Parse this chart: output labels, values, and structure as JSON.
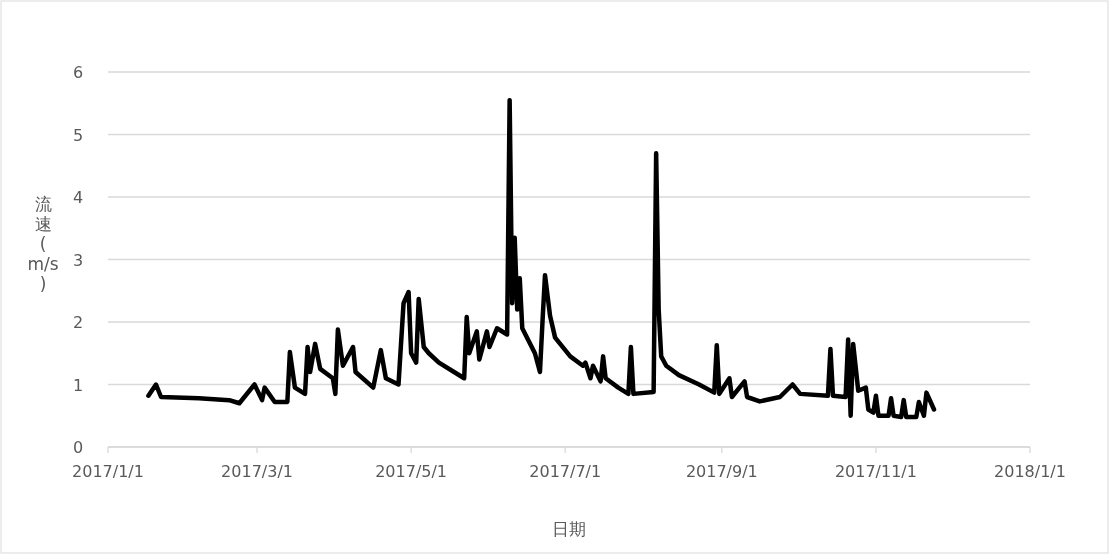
{
  "chart_data": {
    "type": "line",
    "xlabel": "日期",
    "ylabel": "流速(m/s)",
    "xlim": [
      "2017-01-01",
      "2018-01-01"
    ],
    "xticks": [
      {
        "value": "2017-01-01",
        "label": "2017/1/1"
      },
      {
        "value": "2017-03-01",
        "label": "2017/3/1"
      },
      {
        "value": "2017-05-01",
        "label": "2017/5/1"
      },
      {
        "value": "2017-07-01",
        "label": "2017/7/1"
      },
      {
        "value": "2017-09-01",
        "label": "2017/9/1"
      },
      {
        "value": "2017-11-01",
        "label": "2017/11/1"
      },
      {
        "value": "2018-01-01",
        "label": "2018/1/1"
      }
    ],
    "ylim": [
      0,
      6
    ],
    "yticks": [
      0,
      1,
      2,
      3,
      4,
      5,
      6
    ],
    "grid": "y",
    "marker": "none",
    "line_style": "solid",
    "x": [
      "2017-01-17",
      "2017-01-20",
      "2017-01-22",
      "2017-02-06",
      "2017-02-18",
      "2017-02-22",
      "2017-02-28",
      "2017-03-03",
      "2017-03-04",
      "2017-03-08",
      "2017-03-13",
      "2017-03-14",
      "2017-03-16",
      "2017-03-20",
      "2017-03-21",
      "2017-03-22",
      "2017-03-24",
      "2017-03-26",
      "2017-03-31",
      "2017-04-01",
      "2017-04-02",
      "2017-04-04",
      "2017-04-08",
      "2017-04-09",
      "2017-04-16",
      "2017-04-19",
      "2017-04-21",
      "2017-04-26",
      "2017-04-28",
      "2017-04-30",
      "2017-05-01",
      "2017-05-03",
      "2017-05-04",
      "2017-05-06",
      "2017-05-08",
      "2017-05-12",
      "2017-05-18",
      "2017-05-22",
      "2017-05-23",
      "2017-05-24",
      "2017-05-27",
      "2017-05-28",
      "2017-05-31",
      "2017-06-01",
      "2017-06-04",
      "2017-06-08",
      "2017-06-09",
      "2017-06-10",
      "2017-06-11",
      "2017-06-12",
      "2017-06-13",
      "2017-06-14",
      "2017-06-19",
      "2017-06-21",
      "2017-06-22",
      "2017-06-23",
      "2017-06-25",
      "2017-06-27",
      "2017-07-03",
      "2017-07-08",
      "2017-07-09",
      "2017-07-11",
      "2017-07-12",
      "2017-07-15",
      "2017-07-16",
      "2017-07-17",
      "2017-07-22",
      "2017-07-26",
      "2017-07-27",
      "2017-07-28",
      "2017-08-05",
      "2017-08-06",
      "2017-08-07",
      "2017-08-08",
      "2017-08-10",
      "2017-08-15",
      "2017-08-23",
      "2017-08-29",
      "2017-08-30",
      "2017-08-31",
      "2017-09-04",
      "2017-09-05",
      "2017-09-10",
      "2017-09-11",
      "2017-09-16",
      "2017-09-24",
      "2017-09-29",
      "2017-10-02",
      "2017-10-13",
      "2017-10-14",
      "2017-10-15",
      "2017-10-20",
      "2017-10-21",
      "2017-10-22",
      "2017-10-23",
      "2017-10-25",
      "2017-10-28",
      "2017-10-29",
      "2017-10-31",
      "2017-11-01",
      "2017-11-02",
      "2017-11-06",
      "2017-11-07",
      "2017-11-08",
      "2017-11-11",
      "2017-11-12",
      "2017-11-13",
      "2017-11-17",
      "2017-11-18",
      "2017-11-20",
      "2017-11-21",
      "2017-11-24"
    ],
    "series": [
      {
        "color": "#000000",
        "values": [
          0.82,
          1.0,
          0.8,
          0.78,
          0.75,
          0.7,
          1.0,
          0.75,
          0.95,
          0.72,
          0.72,
          1.52,
          0.95,
          0.85,
          1.6,
          1.2,
          1.65,
          1.25,
          1.1,
          0.85,
          1.88,
          1.3,
          1.6,
          1.2,
          0.95,
          1.55,
          1.1,
          1.0,
          2.3,
          2.48,
          1.5,
          1.35,
          2.37,
          1.6,
          1.5,
          1.35,
          1.2,
          1.1,
          2.08,
          1.5,
          1.85,
          1.4,
          1.85,
          1.6,
          1.9,
          1.8,
          5.55,
          2.3,
          3.35,
          2.2,
          2.7,
          1.9,
          1.5,
          1.2,
          2.0,
          2.75,
          2.1,
          1.75,
          1.45,
          1.3,
          1.35,
          1.1,
          1.3,
          1.05,
          1.45,
          1.1,
          0.95,
          0.85,
          1.6,
          0.85,
          0.88,
          4.7,
          2.2,
          1.45,
          1.3,
          1.15,
          1.0,
          0.87,
          1.63,
          0.85,
          1.1,
          0.8,
          1.05,
          0.8,
          0.73,
          0.8,
          1.0,
          0.85,
          0.82,
          1.57,
          0.82,
          0.8,
          1.72,
          0.5,
          1.65,
          0.9,
          0.95,
          0.6,
          0.55,
          0.82,
          0.5,
          0.5,
          0.78,
          0.5,
          0.48,
          0.75,
          0.48,
          0.48,
          0.72,
          0.5,
          0.87,
          0.6
        ]
      }
    ]
  }
}
